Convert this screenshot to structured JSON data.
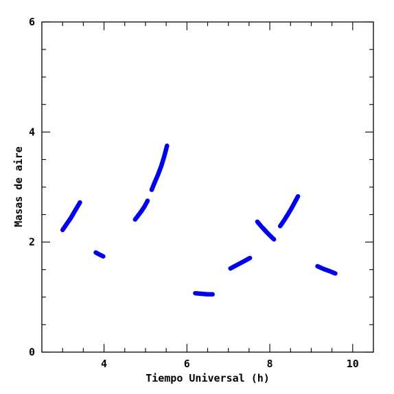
{
  "chart_data": {
    "type": "scatter",
    "xlabel": "Tiempo Universal (h)",
    "ylabel": "Masas de aire",
    "xlim": [
      2.5,
      10.5
    ],
    "ylim": [
      0,
      6
    ],
    "x_major_ticks": [
      4,
      6,
      8,
      10
    ],
    "x_minor_step": 0.5,
    "y_major_ticks": [
      0,
      2,
      4,
      6
    ],
    "y_minor_step": 0.5,
    "grid": false,
    "series": [
      {
        "color": "#0000ee",
        "segments": [
          {
            "x": [
              3.0,
              3.1,
              3.2,
              3.3,
              3.42
            ],
            "y": [
              2.22,
              2.33,
              2.44,
              2.57,
              2.72
            ]
          },
          {
            "x": [
              3.8,
              3.9,
              3.98
            ],
            "y": [
              1.81,
              1.77,
              1.74
            ]
          },
          {
            "x": [
              4.75,
              4.82,
              4.9,
              4.98,
              5.05
            ],
            "y": [
              2.41,
              2.48,
              2.56,
              2.65,
              2.75
            ]
          },
          {
            "x": [
              5.15,
              5.22,
              5.3,
              5.38,
              5.45,
              5.52
            ],
            "y": [
              2.95,
              3.08,
              3.22,
              3.38,
              3.55,
              3.75
            ]
          },
          {
            "x": [
              6.2,
              6.35,
              6.5,
              6.62
            ],
            "y": [
              1.07,
              1.06,
              1.05,
              1.05
            ]
          },
          {
            "x": [
              7.05,
              7.2,
              7.35,
              7.52
            ],
            "y": [
              1.52,
              1.58,
              1.64,
              1.71
            ]
          },
          {
            "x": [
              7.7,
              7.8,
              7.9,
              8.0,
              8.1
            ],
            "y": [
              2.37,
              2.28,
              2.2,
              2.12,
              2.05
            ]
          },
          {
            "x": [
              8.25,
              8.35,
              8.45,
              8.55,
              8.68
            ],
            "y": [
              2.29,
              2.4,
              2.52,
              2.65,
              2.83
            ]
          },
          {
            "x": [
              9.15,
              9.3,
              9.45,
              9.58
            ],
            "y": [
              1.56,
              1.51,
              1.47,
              1.43
            ]
          }
        ]
      }
    ]
  }
}
